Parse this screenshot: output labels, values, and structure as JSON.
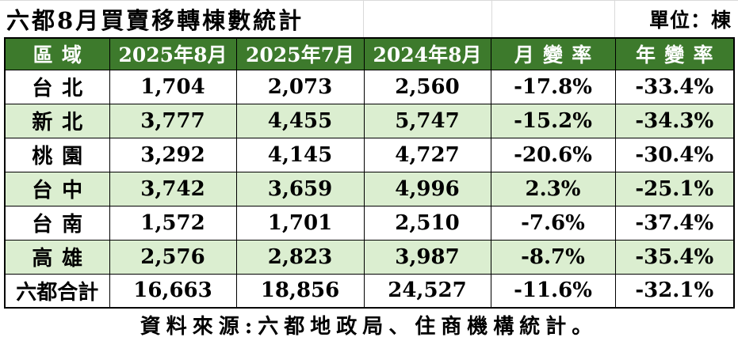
{
  "title": "六都8月買賣移轉棟數統計",
  "unit_label": "單位：棟",
  "source_note": "資料來源:六都地政局、住商機構統計。",
  "colors": {
    "header_bg": "#3d7a2c",
    "header_text": "#ffffff",
    "row_alt_bg": "#dbeed0",
    "table_border": "#000000",
    "title_gridline": "#d9d9d9"
  },
  "table": {
    "columns": [
      "區域",
      "2025年8月",
      "2025年7月",
      "2024年8月",
      "月變率",
      "年變率"
    ],
    "rows": [
      {
        "region": "台北",
        "values": [
          "1,704",
          "2,073",
          "2,560",
          "-17.8%",
          "-33.4%"
        ]
      },
      {
        "region": "新北",
        "values": [
          "3,777",
          "4,455",
          "5,747",
          "-15.2%",
          "-34.3%"
        ]
      },
      {
        "region": "桃園",
        "values": [
          "3,292",
          "4,145",
          "4,727",
          "-20.6%",
          "-30.4%"
        ]
      },
      {
        "region": "台中",
        "values": [
          "3,742",
          "3,659",
          "4,996",
          "2.3%",
          "-25.1%"
        ]
      },
      {
        "region": "台南",
        "values": [
          "1,572",
          "1,701",
          "2,510",
          "-7.6%",
          "-37.4%"
        ]
      },
      {
        "region": "高雄",
        "values": [
          "2,576",
          "2,823",
          "3,987",
          "-8.7%",
          "-35.4%"
        ]
      },
      {
        "region": "六都合計",
        "values": [
          "16,663",
          "18,856",
          "24,527",
          "-11.6%",
          "-32.1%"
        ]
      }
    ]
  },
  "chart_data": {
    "type": "table",
    "title": "六都8月買賣移轉棟數統計",
    "unit": "棟",
    "columns": [
      "區域",
      "2025年8月",
      "2025年7月",
      "2024年8月",
      "月變率(%)",
      "年變率(%)"
    ],
    "rows": [
      [
        "台北",
        1704,
        2073,
        2560,
        -17.8,
        -33.4
      ],
      [
        "新北",
        3777,
        4455,
        5747,
        -15.2,
        -34.3
      ],
      [
        "桃園",
        3292,
        4145,
        4727,
        -20.6,
        -30.4
      ],
      [
        "台中",
        3742,
        3659,
        4996,
        2.3,
        -25.1
      ],
      [
        "台南",
        1572,
        1701,
        2510,
        -7.6,
        -37.4
      ],
      [
        "高雄",
        2576,
        2823,
        3987,
        -8.7,
        -35.4
      ],
      [
        "六都合計",
        16663,
        18856,
        24527,
        -11.6,
        -32.1
      ]
    ],
    "source": "資料來源:六都地政局、住商機構統計。"
  }
}
